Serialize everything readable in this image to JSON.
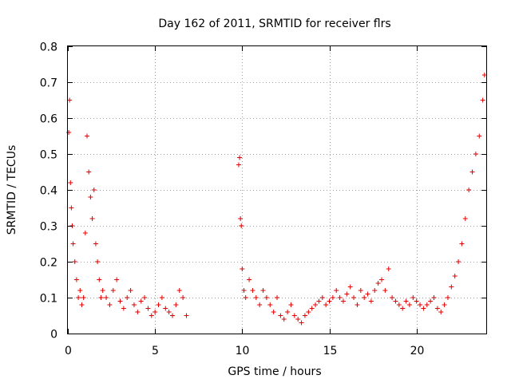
{
  "chart_data": {
    "type": "scatter",
    "title": "Day 162 of 2011, SRMTID for receiver flrs",
    "xlabel": "GPS time / hours",
    "ylabel": "SRMTID / TECUs",
    "xlim": [
      0,
      24
    ],
    "ylim": [
      0,
      0.8
    ],
    "xticks": [
      0,
      5,
      10,
      15,
      20
    ],
    "yticks": [
      0,
      0.1,
      0.2,
      0.3,
      0.4,
      0.5,
      0.6,
      0.7,
      0.8
    ],
    "xtick_labels": [
      "0",
      "5",
      "10",
      "15",
      "20"
    ],
    "ytick_labels": [
      "0",
      "0.1",
      "0.2",
      "0.3",
      "0.4",
      "0.5",
      "0.6",
      "0.7",
      "0.8"
    ],
    "grid": true,
    "marker": "+",
    "color": "#e00000",
    "series": [
      {
        "name": "SRMTID",
        "x": [
          0.05,
          0.1,
          0.15,
          0.2,
          0.25,
          0.3,
          0.4,
          0.5,
          0.6,
          0.7,
          0.8,
          0.9,
          1.0,
          1.1,
          1.2,
          1.3,
          1.4,
          1.5,
          1.6,
          1.7,
          1.8,
          1.9,
          2.0,
          2.2,
          2.4,
          2.6,
          2.8,
          3.0,
          3.2,
          3.4,
          3.6,
          3.8,
          4.0,
          4.2,
          4.4,
          4.6,
          4.8,
          5.0,
          5.2,
          5.4,
          5.6,
          5.8,
          6.0,
          6.2,
          6.4,
          6.6,
          6.8,
          9.8,
          9.85,
          9.9,
          9.95,
          10.0,
          10.1,
          10.2,
          10.4,
          10.6,
          10.8,
          11.0,
          11.2,
          11.4,
          11.6,
          11.8,
          12.0,
          12.2,
          12.4,
          12.6,
          12.8,
          13.0,
          13.2,
          13.4,
          13.6,
          13.8,
          14.0,
          14.2,
          14.4,
          14.6,
          14.8,
          15.0,
          15.2,
          15.4,
          15.6,
          15.8,
          16.0,
          16.2,
          16.4,
          16.6,
          16.8,
          17.0,
          17.2,
          17.4,
          17.6,
          17.8,
          18.0,
          18.2,
          18.4,
          18.6,
          18.8,
          19.0,
          19.2,
          19.4,
          19.6,
          19.8,
          20.0,
          20.2,
          20.4,
          20.6,
          20.8,
          21.0,
          21.2,
          21.4,
          21.6,
          21.8,
          22.0,
          22.2,
          22.4,
          22.6,
          22.8,
          23.0,
          23.2,
          23.4,
          23.6,
          23.8,
          23.9
        ],
        "y": [
          0.56,
          0.65,
          0.42,
          0.35,
          0.3,
          0.25,
          0.2,
          0.15,
          0.1,
          0.12,
          0.08,
          0.1,
          0.28,
          0.55,
          0.45,
          0.38,
          0.32,
          0.4,
          0.25,
          0.2,
          0.15,
          0.1,
          0.12,
          0.1,
          0.08,
          0.12,
          0.15,
          0.09,
          0.07,
          0.1,
          0.12,
          0.08,
          0.06,
          0.09,
          0.1,
          0.07,
          0.05,
          0.06,
          0.08,
          0.1,
          0.07,
          0.06,
          0.05,
          0.08,
          0.12,
          0.1,
          0.05,
          0.47,
          0.49,
          0.32,
          0.3,
          0.18,
          0.12,
          0.1,
          0.15,
          0.12,
          0.1,
          0.08,
          0.12,
          0.1,
          0.08,
          0.06,
          0.1,
          0.05,
          0.04,
          0.06,
          0.08,
          0.05,
          0.04,
          0.03,
          0.05,
          0.06,
          0.07,
          0.08,
          0.09,
          0.1,
          0.08,
          0.09,
          0.1,
          0.12,
          0.1,
          0.09,
          0.11,
          0.13,
          0.1,
          0.08,
          0.12,
          0.1,
          0.11,
          0.09,
          0.12,
          0.14,
          0.15,
          0.12,
          0.18,
          0.1,
          0.09,
          0.08,
          0.07,
          0.09,
          0.08,
          0.1,
          0.09,
          0.08,
          0.07,
          0.08,
          0.09,
          0.1,
          0.07,
          0.06,
          0.08,
          0.1,
          0.13,
          0.16,
          0.2,
          0.25,
          0.32,
          0.4,
          0.45,
          0.5,
          0.55,
          0.65,
          0.72
        ]
      }
    ]
  }
}
